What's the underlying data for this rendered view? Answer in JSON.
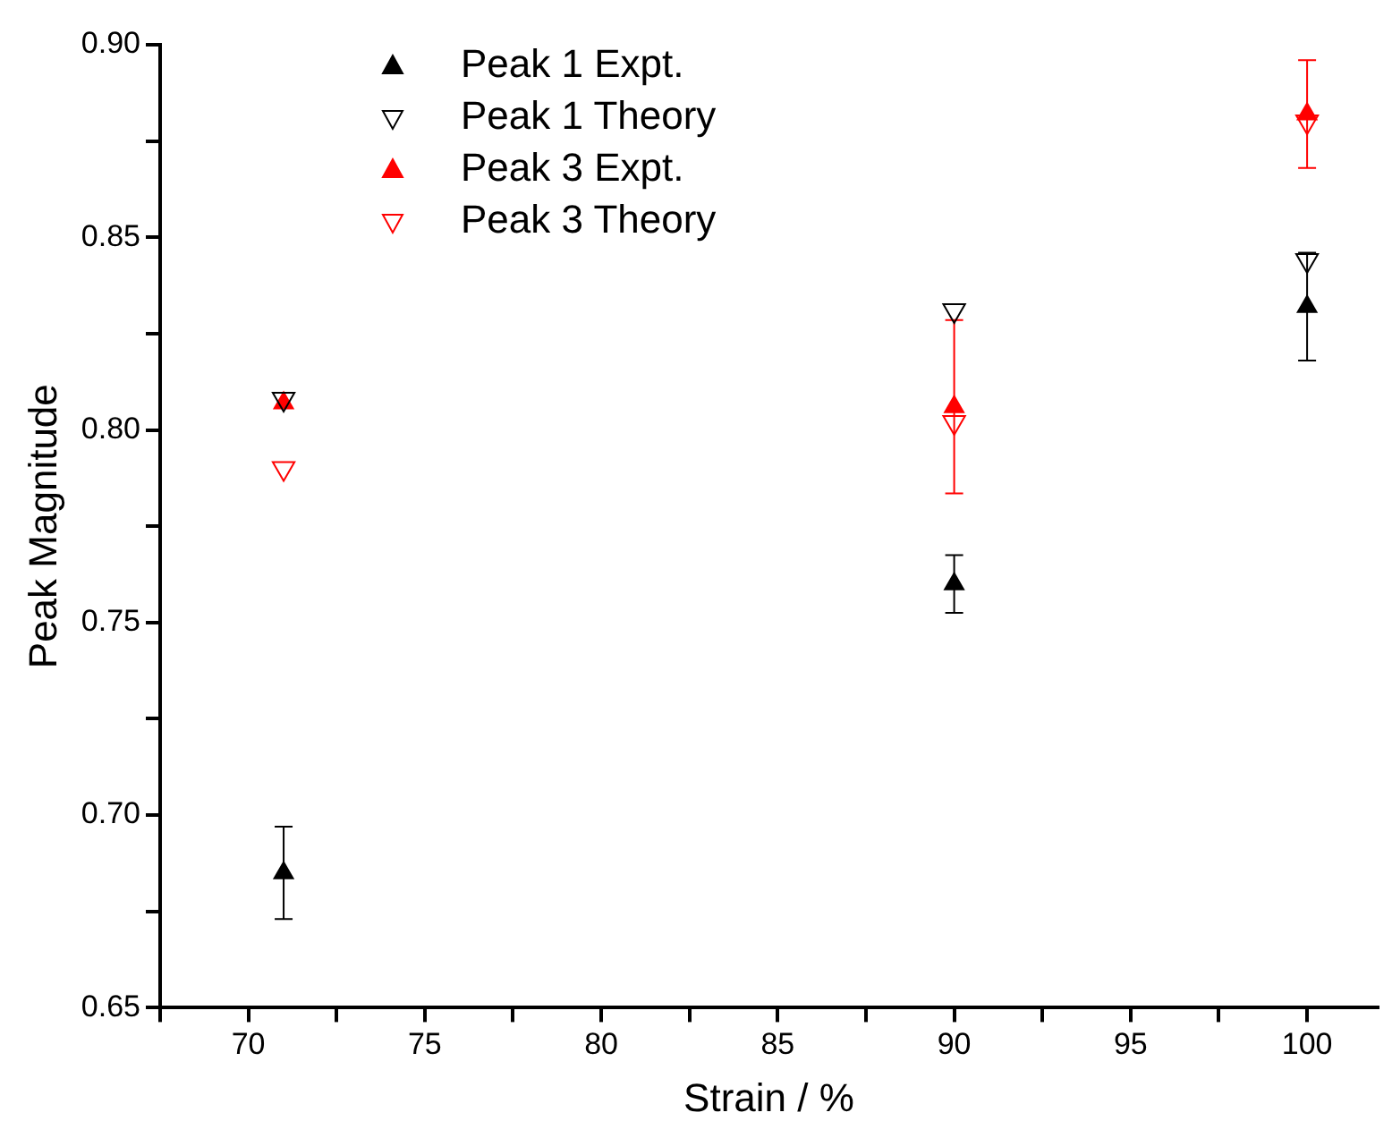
{
  "chart_data": {
    "type": "scatter",
    "xlabel": "Strain / %",
    "ylabel": "Peak Magnitude",
    "x": [
      71,
      90,
      100
    ],
    "series": [
      {
        "name": "Peak 1 Expt.",
        "color": "#000000",
        "marker": "triangle",
        "values": [
          0.685,
          0.76,
          0.832
        ],
        "errors": [
          0.012,
          0.0075,
          0.014
        ]
      },
      {
        "name": "Peak 1 Theory",
        "color": "#000000",
        "marker": "triangle-down-open",
        "values": [
          0.808,
          0.831,
          0.844
        ]
      },
      {
        "name": "Peak 3 Expt.",
        "color": "#ff0000",
        "marker": "triangle",
        "values": [
          0.807,
          0.806,
          0.882
        ],
        "errors": [
          null,
          0.0225,
          0.014
        ]
      },
      {
        "name": "Peak 3 Theory",
        "color": "#ff0000",
        "marker": "triangle-down-open",
        "values": [
          0.79,
          0.802,
          0.88
        ]
      }
    ],
    "xlim": [
      67.5,
      102
    ],
    "xticks": [
      {
        "value": 67.5,
        "label": null
      },
      70,
      {
        "value": 72.5,
        "label": null
      },
      75,
      {
        "value": 77.5,
        "label": null
      },
      80,
      {
        "value": 82.5,
        "label": null
      },
      85,
      {
        "value": 87.5,
        "label": null
      },
      90,
      {
        "value": 92.5,
        "label": null
      },
      95,
      {
        "value": 97.5,
        "label": null
      },
      100
    ],
    "ylim": [
      0.65,
      0.9
    ],
    "yticks": [
      {
        "value": 0.65,
        "label": "0.65"
      },
      {
        "value": 0.675,
        "label": null
      },
      {
        "value": 0.7,
        "label": "0.70"
      },
      {
        "value": 0.725,
        "label": null
      },
      {
        "value": 0.75,
        "label": "0.75"
      },
      {
        "value": 0.775,
        "label": null
      },
      {
        "value": 0.8,
        "label": "0.80"
      },
      {
        "value": 0.825,
        "label": null
      },
      {
        "value": 0.85,
        "label": "0.85"
      },
      {
        "value": 0.875,
        "label": null
      },
      {
        "value": 0.9,
        "label": "0.90"
      }
    ],
    "grid": false,
    "legend": "top"
  }
}
